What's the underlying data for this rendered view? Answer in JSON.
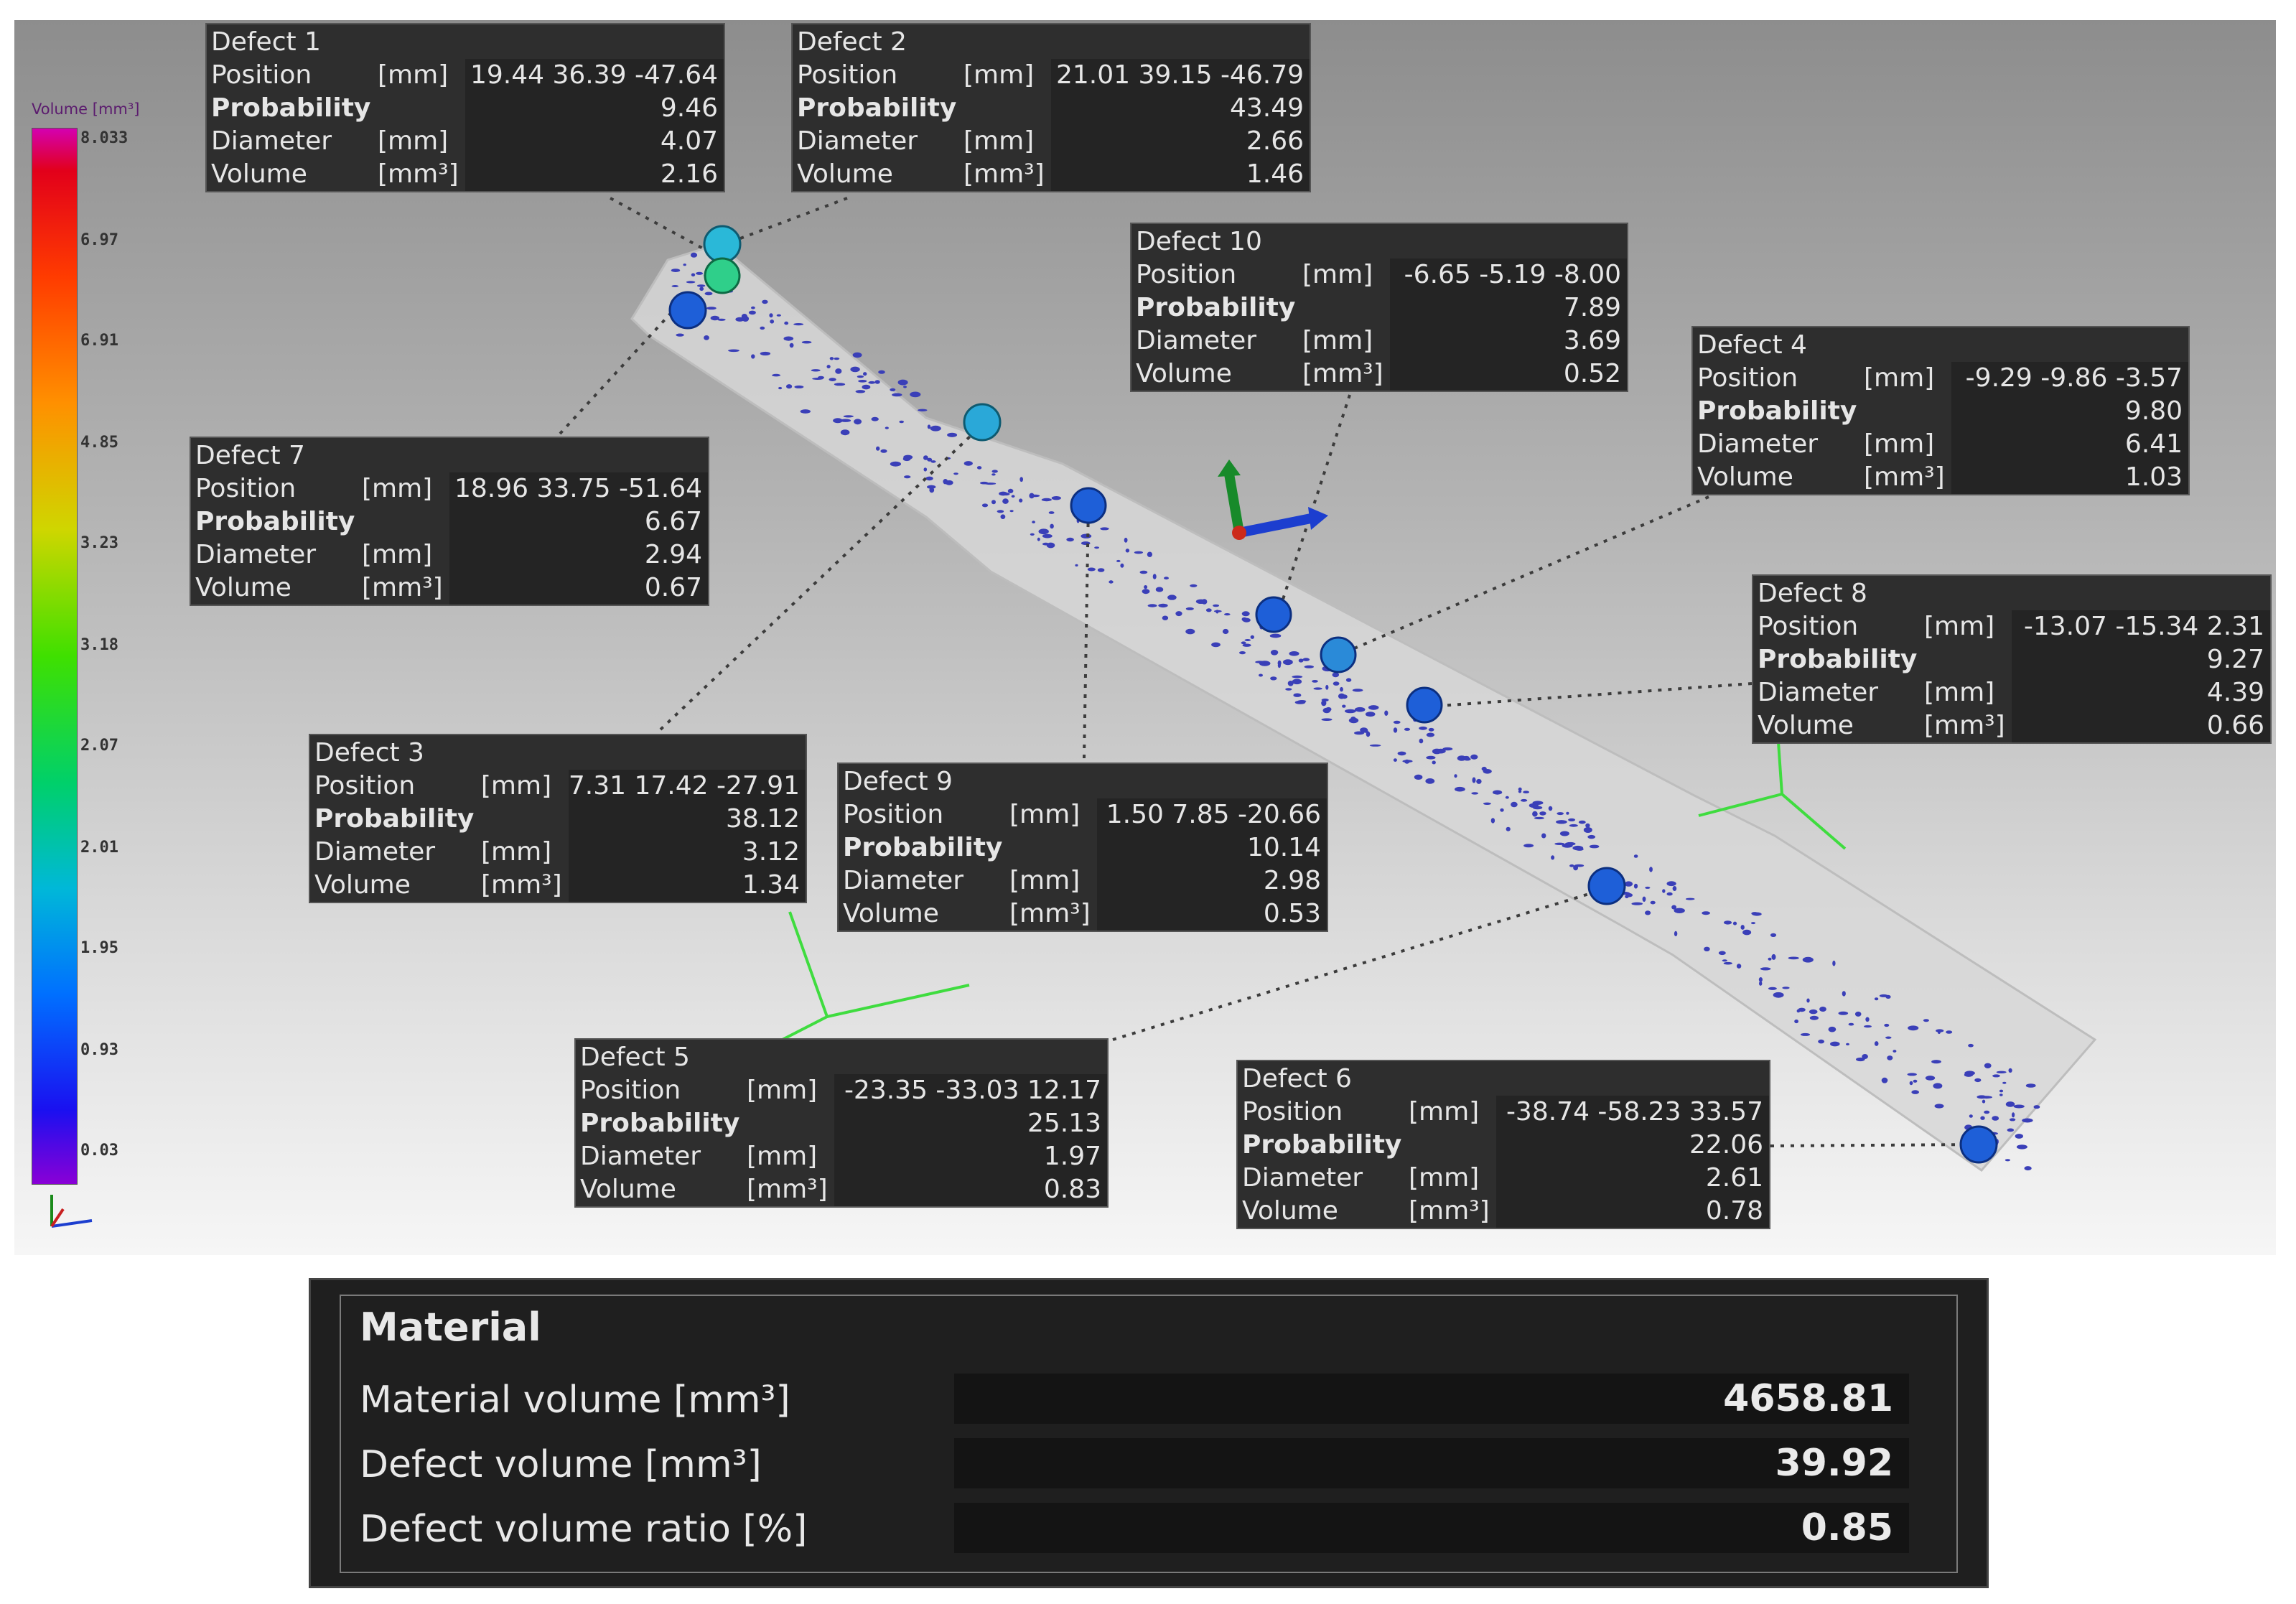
{
  "legend": {
    "title": "Volume [mm³]",
    "ticks": [
      "8.033",
      "6.97",
      "6.91",
      "4.85",
      "3.23",
      "3.18",
      "2.07",
      "2.01",
      "1.95",
      "0.93",
      "0.03"
    ]
  },
  "defects": [
    {
      "title": "Defect 1",
      "position_label": "Position",
      "position_unit": "[mm]",
      "position": "19.44 36.39 -47.64",
      "probability_label": "Probability",
      "probability": "9.46",
      "diameter_label": "Diameter",
      "diameter_unit": "[mm]",
      "diameter": "4.07",
      "volume_label": "Volume",
      "volume_unit": "[mm³]",
      "volume": "2.16"
    },
    {
      "title": "Defect 2",
      "position_label": "Position",
      "position_unit": "[mm]",
      "position": "21.01 39.15 -46.79",
      "probability_label": "Probability",
      "probability": "43.49",
      "diameter_label": "Diameter",
      "diameter_unit": "[mm]",
      "diameter": "2.66",
      "volume_label": "Volume",
      "volume_unit": "[mm³]",
      "volume": "1.46"
    },
    {
      "title": "Defect 10",
      "position_label": "Position",
      "position_unit": "[mm]",
      "position": "-6.65 -5.19 -8.00",
      "probability_label": "Probability",
      "probability": "7.89",
      "diameter_label": "Diameter",
      "diameter_unit": "[mm]",
      "diameter": "3.69",
      "volume_label": "Volume",
      "volume_unit": "[mm³]",
      "volume": "0.52"
    },
    {
      "title": "Defect 4",
      "position_label": "Position",
      "position_unit": "[mm]",
      "position": "-9.29 -9.86 -3.57",
      "probability_label": "Probability",
      "probability": "9.80",
      "diameter_label": "Diameter",
      "diameter_unit": "[mm]",
      "diameter": "6.41",
      "volume_label": "Volume",
      "volume_unit": "[mm³]",
      "volume": "1.03"
    },
    {
      "title": "Defect 7",
      "position_label": "Position",
      "position_unit": "[mm]",
      "position": "18.96 33.75 -51.64",
      "probability_label": "Probability",
      "probability": "6.67",
      "diameter_label": "Diameter",
      "diameter_unit": "[mm]",
      "diameter": "2.94",
      "volume_label": "Volume",
      "volume_unit": "[mm³]",
      "volume": "0.67"
    },
    {
      "title": "Defect 8",
      "position_label": "Position",
      "position_unit": "[mm]",
      "position": "-13.07 -15.34 2.31",
      "probability_label": "Probability",
      "probability": "9.27",
      "diameter_label": "Diameter",
      "diameter_unit": "[mm]",
      "diameter": "4.39",
      "volume_label": "Volume",
      "volume_unit": "[mm³]",
      "volume": "0.66"
    },
    {
      "title": "Defect 3",
      "position_label": "Position",
      "position_unit": "[mm]",
      "position": "7.31 17.42 -27.91",
      "probability_label": "Probability",
      "probability": "38.12",
      "diameter_label": "Diameter",
      "diameter_unit": "[mm]",
      "diameter": "3.12",
      "volume_label": "Volume",
      "volume_unit": "[mm³]",
      "volume": "1.34"
    },
    {
      "title": "Defect 9",
      "position_label": "Position",
      "position_unit": "[mm]",
      "position": "1.50 7.85 -20.66",
      "probability_label": "Probability",
      "probability": "10.14",
      "diameter_label": "Diameter",
      "diameter_unit": "[mm]",
      "diameter": "2.98",
      "volume_label": "Volume",
      "volume_unit": "[mm³]",
      "volume": "0.53"
    },
    {
      "title": "Defect 5",
      "position_label": "Position",
      "position_unit": "[mm]",
      "position": "-23.35 -33.03 12.17",
      "probability_label": "Probability",
      "probability": "25.13",
      "diameter_label": "Diameter",
      "diameter_unit": "[mm]",
      "diameter": "1.97",
      "volume_label": "Volume",
      "volume_unit": "[mm³]",
      "volume": "0.83"
    },
    {
      "title": "Defect 6",
      "position_label": "Position",
      "position_unit": "[mm]",
      "position": "-38.74 -58.23 33.57",
      "probability_label": "Probability",
      "probability": "22.06",
      "diameter_label": "Diameter",
      "diameter_unit": "[mm]",
      "diameter": "2.61",
      "volume_label": "Volume",
      "volume_unit": "[mm³]",
      "volume": "0.78"
    }
  ],
  "material": {
    "title": "Material",
    "rows": [
      {
        "label": "Material volume [mm³]",
        "value": "4658.81"
      },
      {
        "label": "Defect volume [mm³]",
        "value": "39.92"
      },
      {
        "label": "Defect volume ratio [%]",
        "value": "0.85"
      }
    ]
  },
  "colors": {
    "sphere_blue": "#1e5fd8",
    "sphere_cyan": "#2ab8d8",
    "sphere_green": "#2fcf8a",
    "pore": "#3a3fb8",
    "leader": "#3c3c3c",
    "triad_green": "#3fdc3f"
  }
}
